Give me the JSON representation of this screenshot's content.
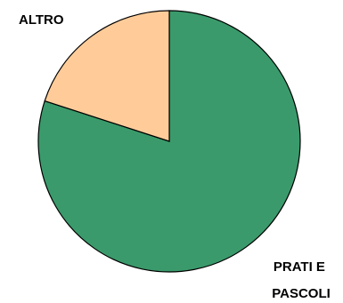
{
  "chart_data": {
    "type": "pie",
    "title": "",
    "slices": [
      {
        "label": "PRATI E PASCOLI",
        "label_lines": [
          "PRATI E",
          "PASCOLI"
        ],
        "value": 80,
        "color": "#3A9A6B"
      },
      {
        "label": "ALTRO",
        "label_lines": [
          "ALTRO"
        ],
        "value": 20,
        "color": "#FFCC99"
      }
    ],
    "start_direction": "top",
    "direction": "clockwise",
    "legend": "none",
    "outline_color": "#000000"
  }
}
